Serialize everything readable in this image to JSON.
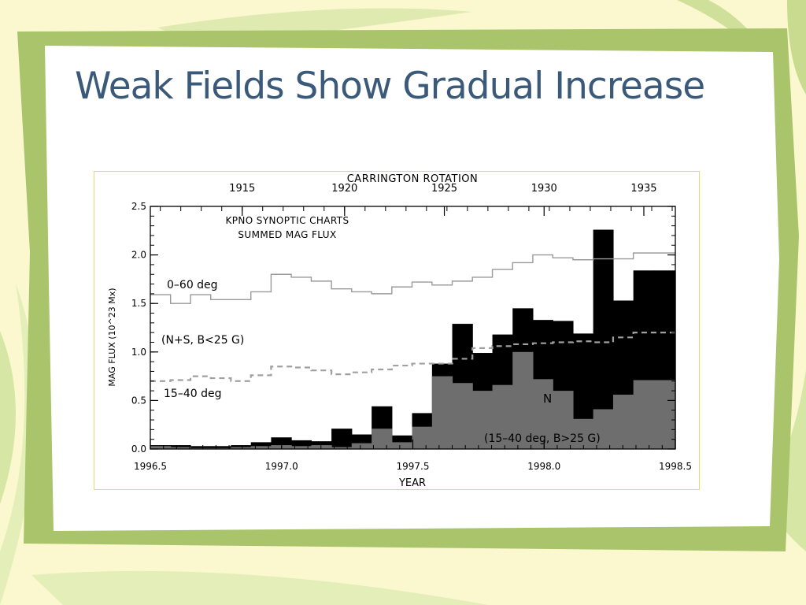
{
  "slide": {
    "title": "Weak Fields Show Gradual Increase"
  },
  "colors": {
    "background": "#fbf8d0",
    "frame": "#a9c46a",
    "title": "#3b5a7a",
    "ns": "#000000",
    "n": "#6e6e6e",
    "dashed": "#a0a0a0"
  },
  "chart_data": {
    "type": "bar",
    "title": "KPNO SYNOPTIC CHARTS",
    "subtitle": "SUMMED MAG FLUX",
    "xlabel": "YEAR",
    "ylabel": "MAG FLUX (10^23 Mx)",
    "top_axis_label": "CARRINGTON ROTATION",
    "xlim": [
      1996.5,
      1998.5
    ],
    "ylim": [
      0.0,
      2.5
    ],
    "x_ticks": [
      "1996.5",
      "1997.0",
      "1997.5",
      "1998.0",
      "1998.5"
    ],
    "y_ticks": [
      "0.0",
      "0.5",
      "1.0",
      "1.5",
      "2.0",
      "2.5"
    ],
    "top_ticks": [
      {
        "label": "1915",
        "year": 1996.85
      },
      {
        "label": "1920",
        "year": 1997.24
      },
      {
        "label": "1925",
        "year": 1997.62
      },
      {
        "label": "1930",
        "year": 1998.0
      },
      {
        "label": "1935",
        "year": 1998.38
      }
    ],
    "bin_edges": [
      1996.5,
      1996.577,
      1996.653,
      1996.73,
      1996.807,
      1996.883,
      1996.96,
      1997.037,
      1997.113,
      1997.19,
      1997.267,
      1997.343,
      1997.42,
      1997.497,
      1997.573,
      1997.65,
      1997.727,
      1997.803,
      1997.88,
      1997.957,
      1998.033,
      1998.11,
      1998.187,
      1998.263,
      1998.34,
      1998.417,
      1998.5
    ],
    "series": [
      {
        "name": "N+S",
        "values": [
          0.04,
          0.04,
          0.03,
          0.03,
          0.04,
          0.07,
          0.12,
          0.09,
          0.08,
          0.21,
          0.15,
          0.44,
          0.14,
          0.37,
          0.88,
          1.29,
          0.99,
          1.18,
          1.45,
          1.33,
          1.32,
          1.19,
          2.26,
          1.53,
          1.84,
          1.84
        ]
      },
      {
        "name": "N",
        "values": [
          0.03,
          0.02,
          0.01,
          0.01,
          0.02,
          0.03,
          0.04,
          0.03,
          0.04,
          0.02,
          0.06,
          0.21,
          0.07,
          0.23,
          0.75,
          0.68,
          0.6,
          0.66,
          1.0,
          0.72,
          0.6,
          0.31,
          0.41,
          0.56,
          0.71,
          0.71
        ]
      },
      {
        "name": "0-60 deg",
        "values": [
          1.59,
          1.5,
          1.59,
          1.54,
          1.54,
          1.62,
          1.8,
          1.77,
          1.73,
          1.65,
          1.62,
          1.6,
          1.67,
          1.72,
          1.69,
          1.73,
          1.77,
          1.85,
          1.92,
          2.0,
          1.97,
          1.95,
          1.96,
          1.96,
          2.02,
          2.02
        ]
      },
      {
        "name": "15-40 deg",
        "values": [
          0.7,
          0.71,
          0.75,
          0.73,
          0.7,
          0.76,
          0.85,
          0.84,
          0.81,
          0.77,
          0.79,
          0.82,
          0.86,
          0.88,
          0.88,
          0.93,
          1.04,
          1.06,
          1.08,
          1.09,
          1.1,
          1.11,
          1.1,
          1.15,
          1.2,
          1.2
        ]
      }
    ],
    "annotations": {
      "line_0_60": "0–60 deg",
      "ns_label": "(N+S, B<25 G)",
      "line_15_40": "15–40 deg",
      "ns_bars": "N+S",
      "n_bars": "N",
      "bottom": "(15–40 deg, B>25 G)"
    },
    "grid": false,
    "legend": "none"
  }
}
